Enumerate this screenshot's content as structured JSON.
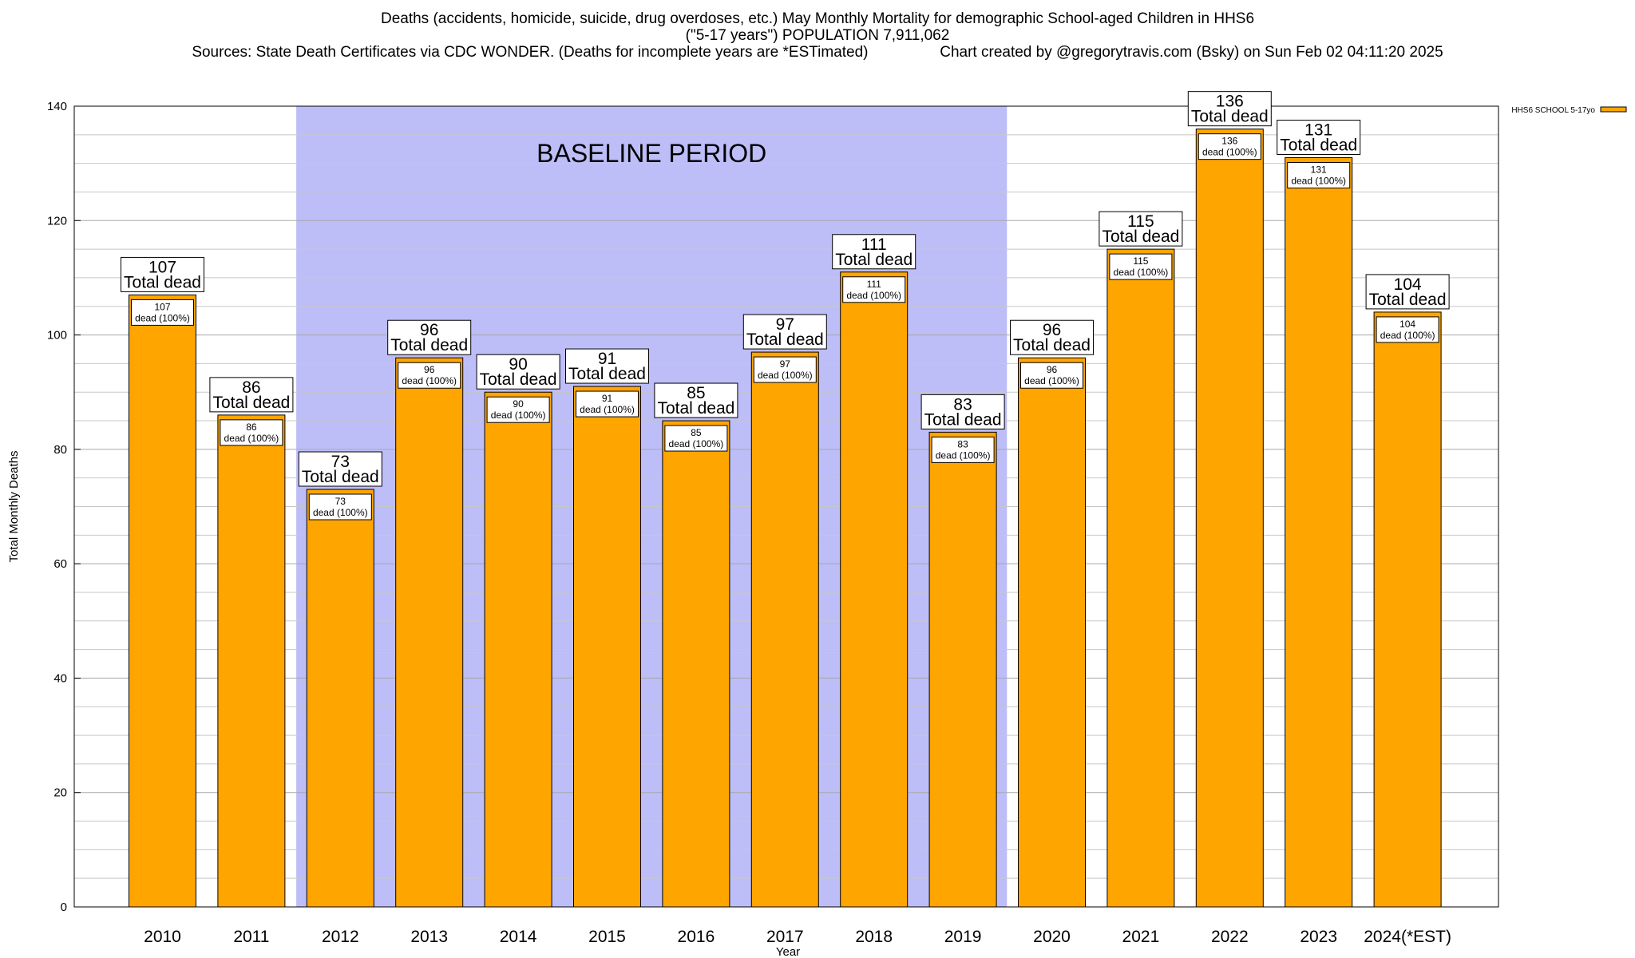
{
  "chart_data": {
    "type": "bar",
    "title_lines": [
      "Deaths (accidents, homicide, suicide, drug overdoses, etc.) May Monthly Mortality for demographic School-aged Children in HHS6",
      "(\"5-17 years\") POPULATION 7,911,062",
      "Sources: State Death Certificates via CDC WONDER. (Deaths for incomplete years are *ESTimated)                 Chart created by @gregorytravis.com (Bsky) on Sun Feb 02 04:11:20 2025"
    ],
    "xlabel": "Year",
    "ylabel": "Total Monthly Deaths",
    "ylim": [
      0,
      140
    ],
    "yticks": [
      0,
      20,
      40,
      60,
      80,
      100,
      120,
      140
    ],
    "categories": [
      "2010",
      "2011",
      "2012",
      "2013",
      "2014",
      "2015",
      "2016",
      "2017",
      "2018",
      "2019",
      "2020",
      "2021",
      "2022",
      "2023",
      "2024(*EST)"
    ],
    "series": [
      {
        "name": "HHS6 SCHOOL 5-17yo",
        "color": "#FFA500",
        "values": [
          107,
          86,
          73,
          96,
          90,
          91,
          85,
          97,
          111,
          83,
          96,
          115,
          136,
          131,
          104
        ]
      }
    ],
    "bar_top_label": "Total dead",
    "bar_inner_label": "dead (100%)",
    "shaded_region": {
      "label": "BASELINE PERIOD",
      "from_category": "2012",
      "to_category": "2019",
      "color": "#BDBDF8"
    },
    "grid": true,
    "minor_grid_step": 5,
    "legend_position": "top-right"
  }
}
